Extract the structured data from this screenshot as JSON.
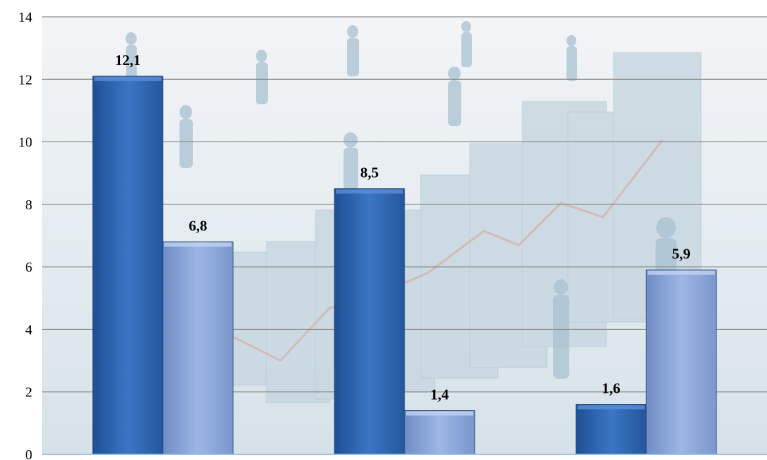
{
  "chart_data": {
    "type": "bar",
    "categories": [
      "",
      "",
      ""
    ],
    "series": [
      {
        "values": [
          12.1,
          8.5,
          1.6
        ],
        "color": "#2f68b4"
      },
      {
        "values": [
          6.8,
          1.4,
          5.9
        ],
        "color": "#8ea8dc"
      }
    ],
    "data_labels": [
      [
        "12,1",
        "8,5",
        "1,6"
      ],
      [
        "6,8",
        "1,4",
        "5,9"
      ]
    ],
    "y_ticks": [
      "0",
      "2",
      "4",
      "6",
      "8",
      "10",
      "12",
      "14"
    ],
    "ylim": [
      0,
      14
    ],
    "grid": true,
    "title": "",
    "xlabel": "",
    "ylabel": ""
  }
}
